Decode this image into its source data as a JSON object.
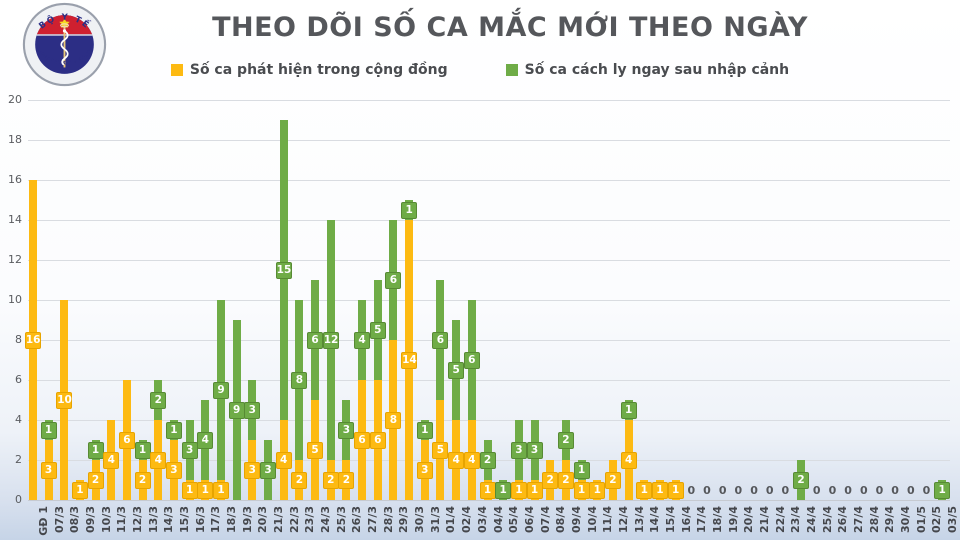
{
  "logo": {
    "top_text": "BỘ Y TẾ",
    "bottom_text": "MINISTRY OF HEALTH"
  },
  "chart_data": {
    "type": "bar",
    "stacked": true,
    "title": "THEO DÕI SỐ CA MẮC MỚI THEO NGÀY",
    "xlabel": "",
    "ylabel": "",
    "ylim": [
      0,
      20
    ],
    "ytick_step": 2,
    "grid": true,
    "legend_position": "top",
    "zero_labels_shown": true,
    "colors": {
      "community": "#FDBA12",
      "community_border": "#E7A400",
      "imported": "#6FAC47",
      "imported_border": "#578A34",
      "gridline": "#D9DCE1",
      "tick_text": "#45474C"
    },
    "categories": [
      "GĐ 1",
      "07/3",
      "08/3",
      "09/3",
      "10/3",
      "11/3",
      "12/3",
      "13/3",
      "14/3",
      "15/3",
      "16/3",
      "17/3",
      "18/3",
      "19/3",
      "20/3",
      "21/3",
      "22/3",
      "23/3",
      "24/3",
      "25/3",
      "26/3",
      "27/3",
      "28/3",
      "29/3",
      "30/3",
      "31/3",
      "01/4",
      "02/4",
      "03/4",
      "04/4",
      "05/4",
      "06/4",
      "07/4",
      "08/4",
      "09/4",
      "10/4",
      "11/4",
      "12/4",
      "13/4",
      "14/4",
      "15/4",
      "16/4",
      "17/4",
      "18/4",
      "19/4",
      "20/4",
      "21/4",
      "22/4",
      "23/4",
      "24/4",
      "25/4",
      "26/4",
      "27/4",
      "28/4",
      "29/4",
      "30/4",
      "01/5",
      "02/5",
      "03/5"
    ],
    "series": [
      {
        "name": "Số ca phát hiện trong cộng đồng",
        "key": "community",
        "values": [
          16,
          3,
          10,
          1,
          2,
          4,
          6,
          2,
          4,
          3,
          1,
          1,
          1,
          0,
          3,
          0,
          4,
          2,
          5,
          2,
          2,
          6,
          6,
          8,
          14,
          3,
          5,
          4,
          4,
          1,
          0,
          1,
          1,
          2,
          2,
          1,
          1,
          2,
          4,
          1,
          1,
          1,
          0,
          0,
          0,
          0,
          0,
          0,
          0,
          0,
          0,
          0,
          0,
          0,
          0,
          0,
          0,
          0,
          0
        ]
      },
      {
        "name": "Số ca cách ly ngay sau nhập cảnh",
        "key": "imported",
        "values": [
          0,
          1,
          0,
          0,
          1,
          0,
          0,
          1,
          2,
          1,
          3,
          4,
          9,
          9,
          3,
          3,
          15,
          8,
          6,
          12,
          3,
          4,
          5,
          6,
          1,
          1,
          6,
          5,
          6,
          2,
          1,
          3,
          3,
          0,
          2,
          1,
          0,
          0,
          1,
          0,
          0,
          0,
          0,
          0,
          0,
          0,
          0,
          0,
          0,
          2,
          0,
          0,
          0,
          0,
          0,
          0,
          0,
          0,
          1
        ]
      }
    ]
  }
}
